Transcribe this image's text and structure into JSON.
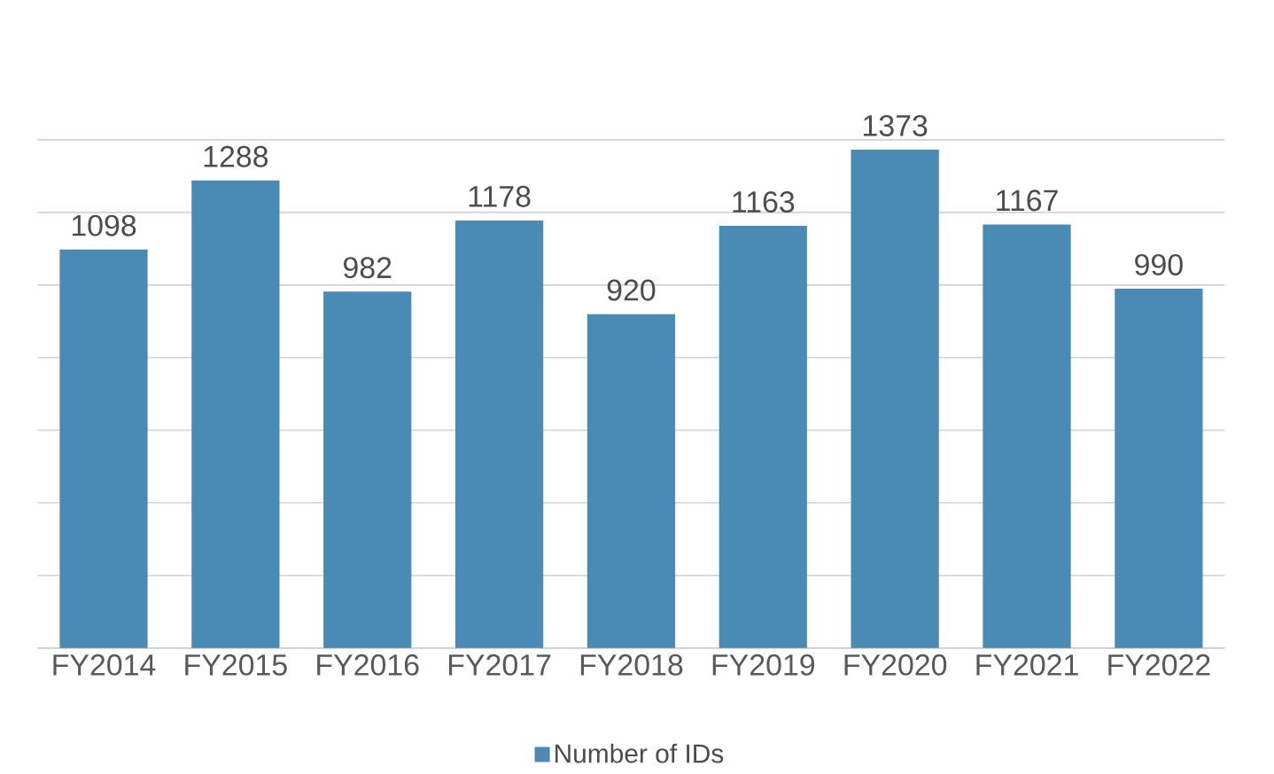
{
  "chart_data": {
    "type": "bar",
    "categories": [
      "FY2014",
      "FY2015",
      "FY2016",
      "FY2017",
      "FY2018",
      "FY2019",
      "FY2020",
      "FY2021",
      "FY2022"
    ],
    "series": [
      {
        "name": "Number of IDs",
        "color": "#4a8bb5",
        "values": [
          1098,
          1288,
          982,
          1178,
          920,
          1163,
          1373,
          1167,
          990
        ]
      }
    ],
    "grid": "y",
    "tick_labels": "x",
    "data_labels": true,
    "legend": "bottom"
  }
}
